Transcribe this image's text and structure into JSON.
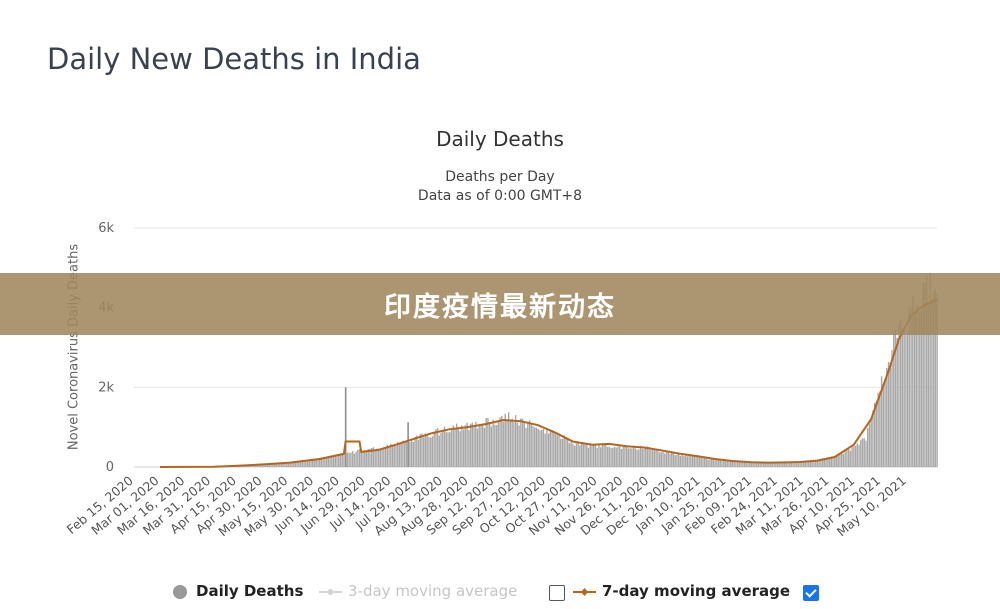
{
  "page": {
    "title": "Daily New Deaths in India"
  },
  "banner": {
    "text": "印度疫情最新动态"
  },
  "legend": {
    "items": [
      {
        "label": "Daily Deaths",
        "active": true
      },
      {
        "label": "3-day moving average",
        "active": false
      },
      {
        "label": "7-day moving average",
        "active": true
      }
    ]
  },
  "colors": {
    "bars": "#a8a8a8",
    "line": "#b5651d",
    "banner": "#a0875f",
    "checkbox": "#1a73e8"
  },
  "chart_data": {
    "type": "bar",
    "title": "Daily Deaths",
    "subtitle": "Deaths per Day",
    "subtitle2": "Data as of 0:00 GMT+8",
    "ylabel": "Novel Coronavirus Daily Deaths",
    "xlabel": "",
    "ylim": [
      0,
      6000
    ],
    "yticks": [
      0,
      2000,
      4000,
      6000
    ],
    "ytick_labels": [
      "0",
      "2k",
      "4k",
      "6k"
    ],
    "xtick_labels": [
      "Feb 15, 2020",
      "Mar 01, 2020",
      "Mar 16, 2020",
      "Mar 31, 2020",
      "Apr 15, 2020",
      "Apr 30, 2020",
      "May 15, 2020",
      "May 30, 2020",
      "Jun 14, 2020",
      "Jun 29, 2020",
      "Jul 14, 2020",
      "Jul 29, 2020",
      "Aug 13, 2020",
      "Aug 28, 2020",
      "Sep 12, 2020",
      "Sep 27, 2020",
      "Oct 12, 2020",
      "Oct 27, 2020",
      "Nov 11, 2020",
      "Nov 26, 2020",
      "Dec 11, 2020",
      "Dec 26, 2020",
      "Jan 10, 2021",
      "Jan 25, 2021",
      "Feb 09, 2021",
      "Feb 24, 2021",
      "Mar 11, 2021",
      "Mar 26, 2021",
      "Apr 10, 2021",
      "Apr 25, 2021",
      "May 10, 2021"
    ],
    "date_range": [
      "2020-02-15",
      "2021-05-23"
    ],
    "series": [
      {
        "name": "Daily Deaths",
        "style": "bar",
        "points": [
          [
            "2020-03-20",
            3
          ],
          [
            "2020-04-01",
            20
          ],
          [
            "2020-04-10",
            40
          ],
          [
            "2020-04-20",
            50
          ],
          [
            "2020-04-30",
            70
          ],
          [
            "2020-05-10",
            100
          ],
          [
            "2020-05-20",
            140
          ],
          [
            "2020-05-30",
            190
          ],
          [
            "2020-06-10",
            280
          ],
          [
            "2020-06-16",
            2000
          ],
          [
            "2020-06-17",
            340
          ],
          [
            "2020-06-25",
            410
          ],
          [
            "2020-07-05",
            470
          ],
          [
            "2020-07-15",
            580
          ],
          [
            "2020-07-22",
            1120
          ],
          [
            "2020-07-23",
            680
          ],
          [
            "2020-08-01",
            800
          ],
          [
            "2020-08-15",
            950
          ],
          [
            "2020-08-28",
            1050
          ],
          [
            "2020-09-10",
            1150
          ],
          [
            "2020-09-16",
            1290
          ],
          [
            "2020-09-25",
            1150
          ],
          [
            "2020-10-05",
            980
          ],
          [
            "2020-10-15",
            820
          ],
          [
            "2020-10-25",
            600
          ],
          [
            "2020-11-05",
            540
          ],
          [
            "2020-11-15",
            530
          ],
          [
            "2020-11-25",
            500
          ],
          [
            "2020-12-05",
            480
          ],
          [
            "2020-12-15",
            400
          ],
          [
            "2020-12-25",
            320
          ],
          [
            "2021-01-05",
            250
          ],
          [
            "2021-01-15",
            190
          ],
          [
            "2021-01-25",
            150
          ],
          [
            "2021-02-05",
            110
          ],
          [
            "2021-02-15",
            95
          ],
          [
            "2021-02-25",
            110
          ],
          [
            "2021-03-05",
            130
          ],
          [
            "2021-03-15",
            170
          ],
          [
            "2021-03-25",
            250
          ],
          [
            "2021-04-05",
            480
          ],
          [
            "2021-04-12",
            750
          ],
          [
            "2021-04-19",
            1750
          ],
          [
            "2021-04-26",
            2900
          ],
          [
            "2021-05-03",
            3500
          ],
          [
            "2021-05-10",
            4000
          ],
          [
            "2021-05-15",
            4200
          ],
          [
            "2021-05-20",
            4500
          ],
          [
            "2021-05-23",
            4400
          ]
        ]
      },
      {
        "name": "7-day moving average",
        "style": "line",
        "points": [
          [
            "2020-03-01",
            1
          ],
          [
            "2020-04-01",
            5
          ],
          [
            "2020-04-15",
            30
          ],
          [
            "2020-05-01",
            70
          ],
          [
            "2020-05-15",
            110
          ],
          [
            "2020-06-01",
            200
          ],
          [
            "2020-06-15",
            330
          ],
          [
            "2020-06-16",
            640
          ],
          [
            "2020-06-24",
            640
          ],
          [
            "2020-06-25",
            380
          ],
          [
            "2020-07-05",
            430
          ],
          [
            "2020-07-15",
            560
          ],
          [
            "2020-07-25",
            700
          ],
          [
            "2020-08-05",
            850
          ],
          [
            "2020-08-15",
            950
          ],
          [
            "2020-08-25",
            1000
          ],
          [
            "2020-09-05",
            1080
          ],
          [
            "2020-09-15",
            1180
          ],
          [
            "2020-09-25",
            1150
          ],
          [
            "2020-10-05",
            1050
          ],
          [
            "2020-10-15",
            860
          ],
          [
            "2020-10-25",
            640
          ],
          [
            "2020-11-05",
            560
          ],
          [
            "2020-11-15",
            580
          ],
          [
            "2020-11-25",
            520
          ],
          [
            "2020-12-05",
            490
          ],
          [
            "2020-12-15",
            420
          ],
          [
            "2020-12-25",
            340
          ],
          [
            "2021-01-05",
            270
          ],
          [
            "2021-01-15",
            200
          ],
          [
            "2021-01-25",
            150
          ],
          [
            "2021-02-05",
            120
          ],
          [
            "2021-02-15",
            110
          ],
          [
            "2021-02-25",
            115
          ],
          [
            "2021-03-05",
            125
          ],
          [
            "2021-03-15",
            160
          ],
          [
            "2021-03-25",
            250
          ],
          [
            "2021-04-05",
            560
          ],
          [
            "2021-04-15",
            1200
          ],
          [
            "2021-04-25",
            2400
          ],
          [
            "2021-05-01",
            3200
          ],
          [
            "2021-05-08",
            3800
          ],
          [
            "2021-05-15",
            4050
          ],
          [
            "2021-05-23",
            4200
          ]
        ]
      }
    ]
  }
}
